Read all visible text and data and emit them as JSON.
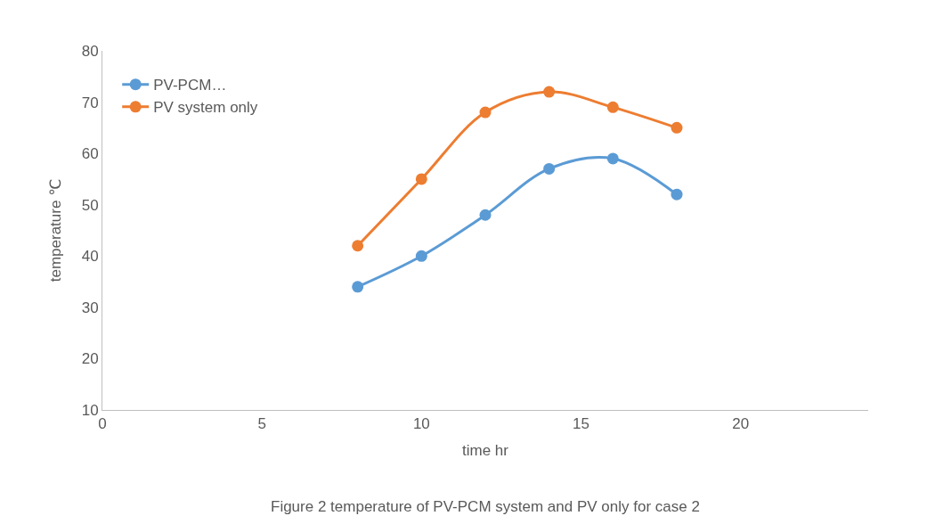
{
  "chart_data": {
    "type": "line",
    "xlabel": "time hr",
    "ylabel": "temperature ℃",
    "x": [
      8,
      10,
      12,
      14,
      16,
      18
    ],
    "series": [
      {
        "name": "PV-PCM…",
        "color": "#5b9bd5",
        "values": [
          34,
          40,
          48,
          57,
          59,
          52
        ]
      },
      {
        "name": "PV system only",
        "color": "#ed7d31",
        "values": [
          42,
          55,
          68,
          72,
          69,
          65
        ]
      }
    ],
    "xlim": [
      0,
      24
    ],
    "xticks": [
      0,
      5,
      10,
      15,
      20
    ],
    "ylim": [
      10,
      80
    ],
    "yticks": [
      10,
      20,
      30,
      40,
      50,
      60,
      70,
      80
    ],
    "grid": false,
    "legend": "top left",
    "marker": "circle",
    "line_style": "solid",
    "annotations": [
      "Figure 2 temperature of PV-PCM system and PV only for case 2"
    ]
  }
}
